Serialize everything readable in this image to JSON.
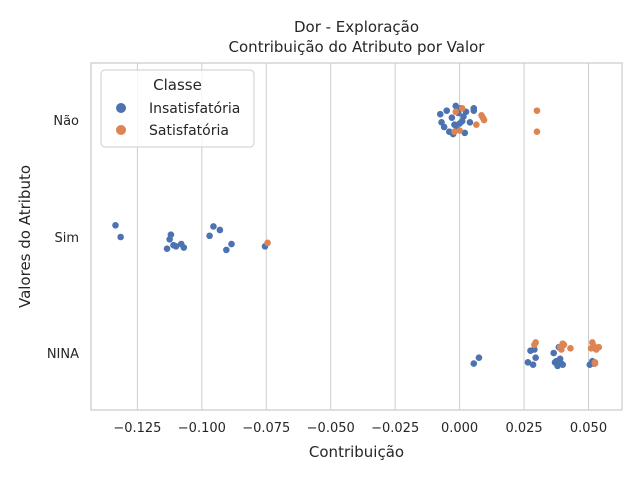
{
  "chart_data": {
    "type": "scatter",
    "title": "Dor - Exploração",
    "subtitle": "Contribuição do Atributo por Valor",
    "xlabel": "Contribuição",
    "ylabel": "Valores do Atributo",
    "xlim": [
      -0.143,
      0.063
    ],
    "x_ticks": [
      -0.125,
      -0.1,
      -0.075,
      -0.05,
      -0.025,
      0.0,
      0.025,
      0.05
    ],
    "x_tick_labels": [
      "−0.125",
      "−0.100",
      "−0.075",
      "−0.050",
      "−0.025",
      "0.000",
      "0.025",
      "0.050"
    ],
    "categories": [
      "Não",
      "Sim",
      "NINA"
    ],
    "grid": "vertical",
    "legend": {
      "title": "Classe",
      "placement": "top-left"
    },
    "series": [
      {
        "name": "Insatisfatória",
        "color": "#4c72b0",
        "points": [
          {
            "category": "Não",
            "x": -0.0075,
            "j": -0.05
          },
          {
            "category": "Não",
            "x": -0.007,
            "j": 0.02
          },
          {
            "category": "Não",
            "x": -0.006,
            "j": 0.06
          },
          {
            "category": "Não",
            "x": -0.005,
            "j": -0.08
          },
          {
            "category": "Não",
            "x": -0.004,
            "j": 0.1
          },
          {
            "category": "Não",
            "x": -0.003,
            "j": -0.02
          },
          {
            "category": "Não",
            "x": -0.0025,
            "j": 0.12
          },
          {
            "category": "Não",
            "x": -0.002,
            "j": 0.04
          },
          {
            "category": "Não",
            "x": -0.0015,
            "j": -0.12
          },
          {
            "category": "Não",
            "x": -0.001,
            "j": 0.08
          },
          {
            "category": "Não",
            "x": -0.0005,
            "j": -0.06
          },
          {
            "category": "Não",
            "x": 0.0,
            "j": 0.03
          },
          {
            "category": "Não",
            "x": 0.0005,
            "j": -0.1
          },
          {
            "category": "Não",
            "x": 0.001,
            "j": 0.01
          },
          {
            "category": "Não",
            "x": 0.0015,
            "j": -0.03
          },
          {
            "category": "Não",
            "x": 0.002,
            "j": 0.11
          },
          {
            "category": "Não",
            "x": 0.0025,
            "j": -0.07
          },
          {
            "category": "Não",
            "x": 0.004,
            "j": 0.02
          },
          {
            "category": "Não",
            "x": 0.0055,
            "j": -0.08
          },
          {
            "category": "Não",
            "x": 0.0055,
            "j": -0.1
          },
          {
            "category": "Sim",
            "x": -0.1335,
            "j": -0.1
          },
          {
            "category": "Sim",
            "x": -0.1315,
            "j": 0.0
          },
          {
            "category": "Sim",
            "x": -0.1135,
            "j": 0.1
          },
          {
            "category": "Sim",
            "x": -0.1125,
            "j": 0.02
          },
          {
            "category": "Sim",
            "x": -0.112,
            "j": -0.02
          },
          {
            "category": "Sim",
            "x": -0.111,
            "j": 0.07
          },
          {
            "category": "Sim",
            "x": -0.11,
            "j": 0.08
          },
          {
            "category": "Sim",
            "x": -0.108,
            "j": 0.06
          },
          {
            "category": "Sim",
            "x": -0.107,
            "j": 0.09
          },
          {
            "category": "Sim",
            "x": -0.097,
            "j": -0.01
          },
          {
            "category": "Sim",
            "x": -0.0955,
            "j": -0.09
          },
          {
            "category": "Sim",
            "x": -0.093,
            "j": -0.06
          },
          {
            "category": "Sim",
            "x": -0.0905,
            "j": 0.11
          },
          {
            "category": "Sim",
            "x": -0.0885,
            "j": 0.06
          },
          {
            "category": "Sim",
            "x": -0.0755,
            "j": 0.08
          },
          {
            "category": "NINA",
            "x": 0.0055,
            "j": 0.09
          },
          {
            "category": "NINA",
            "x": 0.0075,
            "j": 0.04
          },
          {
            "category": "NINA",
            "x": 0.0265,
            "j": 0.08
          },
          {
            "category": "NINA",
            "x": 0.0275,
            "j": -0.02
          },
          {
            "category": "NINA",
            "x": 0.0285,
            "j": 0.1
          },
          {
            "category": "NINA",
            "x": 0.029,
            "j": -0.03
          },
          {
            "category": "NINA",
            "x": 0.0295,
            "j": 0.04
          },
          {
            "category": "NINA",
            "x": 0.0365,
            "j": 0.0
          },
          {
            "category": "NINA",
            "x": 0.037,
            "j": 0.08
          },
          {
            "category": "NINA",
            "x": 0.0375,
            "j": 0.07
          },
          {
            "category": "NINA",
            "x": 0.038,
            "j": 0.11
          },
          {
            "category": "NINA",
            "x": 0.0385,
            "j": -0.05
          },
          {
            "category": "NINA",
            "x": 0.039,
            "j": 0.05
          },
          {
            "category": "NINA",
            "x": 0.0395,
            "j": 0.09
          },
          {
            "category": "NINA",
            "x": 0.04,
            "j": 0.1
          },
          {
            "category": "NINA",
            "x": 0.0505,
            "j": 0.1
          },
          {
            "category": "NINA",
            "x": 0.0515,
            "j": 0.07
          },
          {
            "category": "NINA",
            "x": 0.052,
            "j": 0.09
          }
        ]
      },
      {
        "name": "Satisfatória",
        "color": "#dd8452",
        "points": [
          {
            "category": "Não",
            "x": -0.002,
            "j": 0.1
          },
          {
            "category": "Não",
            "x": -0.0015,
            "j": -0.07
          },
          {
            "category": "Não",
            "x": 0.0,
            "j": 0.09
          },
          {
            "category": "Não",
            "x": 0.001,
            "j": -0.1
          },
          {
            "category": "Não",
            "x": 0.0065,
            "j": 0.04
          },
          {
            "category": "Não",
            "x": 0.0085,
            "j": -0.04
          },
          {
            "category": "Não",
            "x": 0.009,
            "j": -0.02
          },
          {
            "category": "Não",
            "x": 0.0095,
            "j": 0.0
          },
          {
            "category": "Não",
            "x": 0.03,
            "j": 0.1
          },
          {
            "category": "Não",
            "x": 0.03,
            "j": -0.08
          },
          {
            "category": "Sim",
            "x": -0.0745,
            "j": 0.05
          },
          {
            "category": "NINA",
            "x": 0.029,
            "j": -0.07
          },
          {
            "category": "NINA",
            "x": 0.0295,
            "j": -0.09
          },
          {
            "category": "NINA",
            "x": 0.039,
            "j": -0.05
          },
          {
            "category": "NINA",
            "x": 0.0395,
            "j": -0.03
          },
          {
            "category": "NINA",
            "x": 0.04,
            "j": -0.08
          },
          {
            "category": "NINA",
            "x": 0.0405,
            "j": -0.07
          },
          {
            "category": "NINA",
            "x": 0.043,
            "j": -0.04
          },
          {
            "category": "NINA",
            "x": 0.051,
            "j": -0.04
          },
          {
            "category": "NINA",
            "x": 0.0515,
            "j": -0.09
          },
          {
            "category": "NINA",
            "x": 0.052,
            "j": -0.06
          },
          {
            "category": "NINA",
            "x": 0.0525,
            "j": 0.09
          },
          {
            "category": "NINA",
            "x": 0.053,
            "j": -0.03
          },
          {
            "category": "NINA",
            "x": 0.054,
            "j": -0.05
          },
          {
            "category": "NINA",
            "x": 0.0525,
            "j": 0.08
          }
        ]
      }
    ]
  }
}
